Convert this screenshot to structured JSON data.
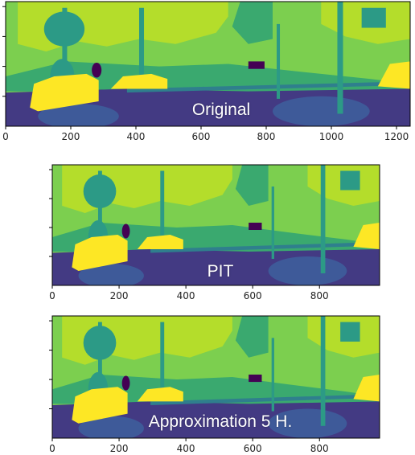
{
  "panels": [
    {
      "id": "original",
      "caption": "Original",
      "x_ticks": [
        0,
        200,
        400,
        600,
        800,
        1000,
        1200
      ],
      "x_range": [
        0,
        1242
      ]
    },
    {
      "id": "pit",
      "caption": "PIT",
      "x_ticks": [
        0,
        200,
        400,
        600,
        800
      ],
      "x_range": [
        0,
        980
      ]
    },
    {
      "id": "approx",
      "caption": "Approximation 5 H.",
      "x_ticks": [
        0,
        200,
        400,
        600,
        800
      ],
      "x_range": [
        0,
        980
      ]
    }
  ],
  "palette": {
    "road": "#433a83",
    "shadow": "#3e5a99",
    "sky": "#7ccf4f",
    "vegetation": "#b4dd2b",
    "building": "#3aa96f",
    "tree": "#2c9a86",
    "car": "#fde725",
    "dark_object": "#440154",
    "sidewalk": "#2f7f8d"
  }
}
